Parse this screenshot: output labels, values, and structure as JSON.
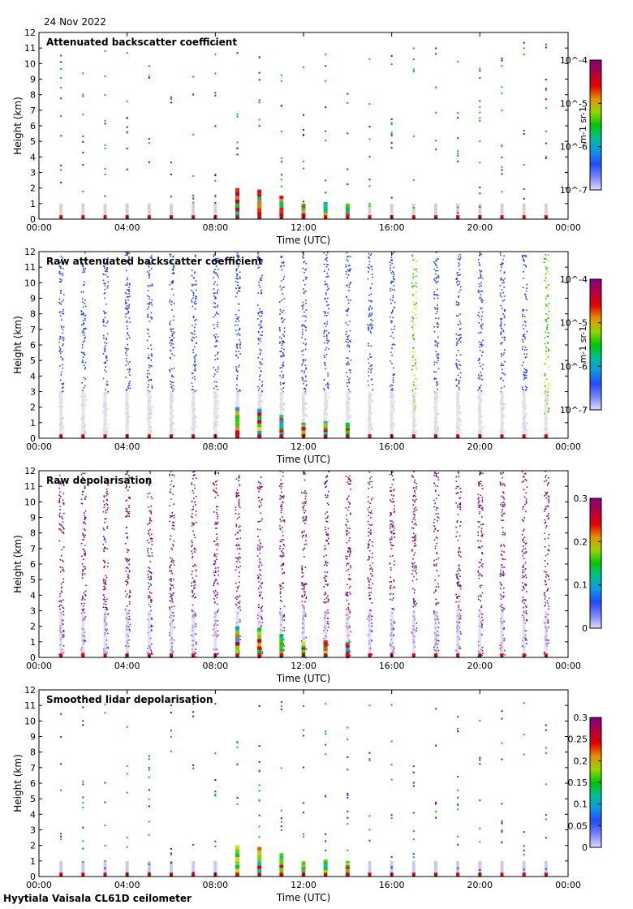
{
  "date": "24 Nov 2022",
  "footer": "Hyytiala Vaisala CL61D ceilometer",
  "colors": {
    "accent_purple": "#7f007f",
    "grid_gray": "#d3d3d3",
    "blue": "#1e3cff",
    "green": "#00c800",
    "yellow": "#e6dc00",
    "red": "#e00000",
    "cyan": "#00b4c8"
  },
  "chart_data": [
    {
      "type": "heatmap",
      "title": "Attenuated backscatter coefficient",
      "xlabel": "Time (UTC)",
      "ylabel": "Height (km)",
      "xticks": [
        "00:00",
        "04:00",
        "08:00",
        "12:00",
        "16:00",
        "20:00",
        "00:00"
      ],
      "xlim": [
        0,
        24
      ],
      "ylim": [
        0,
        12
      ],
      "yticks": [
        0,
        1,
        2,
        3,
        4,
        5,
        6,
        7,
        8,
        9,
        10,
        11,
        12
      ],
      "colorbar": {
        "scale": "log",
        "ticks": [
          "10^-4",
          "10^-5",
          "10^-6",
          "10^-7"
        ],
        "unit": "m-1 sr-1"
      },
      "profile_hours": [
        1,
        2,
        3,
        4,
        5,
        6,
        7,
        8,
        9,
        10,
        11,
        12,
        13,
        14,
        15,
        16,
        17,
        18,
        19,
        20,
        21,
        22,
        23
      ],
      "low_cloud_hours": [
        9,
        10,
        11,
        12,
        13,
        14
      ],
      "low_cloud_top_km": [
        2.0,
        1.9,
        1.5,
        1.0,
        1.1,
        1.0
      ],
      "field": "sparse"
    },
    {
      "type": "heatmap",
      "title": "Raw attenuated backscatter coefficient",
      "xlabel": "Time (UTC)",
      "ylabel": "Height (km)",
      "xticks": [
        "00:00",
        "04:00",
        "08:00",
        "12:00",
        "16:00",
        "20:00",
        "00:00"
      ],
      "xlim": [
        0,
        24
      ],
      "ylim": [
        0,
        12
      ],
      "yticks": [
        0,
        1,
        2,
        3,
        4,
        5,
        6,
        7,
        8,
        9,
        10,
        11,
        12
      ],
      "colorbar": {
        "scale": "log",
        "ticks": [
          "10^-4",
          "10^-5",
          "10^-6",
          "10^-7"
        ],
        "unit": "m-1 sr-1"
      },
      "profile_hours": [
        1,
        2,
        3,
        4,
        5,
        6,
        7,
        8,
        9,
        10,
        11,
        12,
        13,
        14,
        15,
        16,
        17,
        18,
        19,
        20,
        21,
        22,
        23
      ],
      "low_cloud_hours": [
        9,
        10,
        11,
        12,
        13,
        14
      ],
      "low_cloud_top_km": [
        2.0,
        1.9,
        1.5,
        1.0,
        1.1,
        1.0
      ],
      "field": "dense_raw"
    },
    {
      "type": "heatmap",
      "title": "Raw depolarisation",
      "xlabel": "Time (UTC)",
      "ylabel": "Height (km)",
      "xticks": [
        "00:00",
        "04:00",
        "08:00",
        "12:00",
        "16:00",
        "20:00",
        "00:00"
      ],
      "xlim": [
        0,
        24
      ],
      "ylim": [
        0,
        12
      ],
      "yticks": [
        0,
        1,
        2,
        3,
        4,
        5,
        6,
        7,
        8,
        9,
        10,
        11,
        12
      ],
      "colorbar": {
        "scale": "linear",
        "ticks": [
          "0.3",
          "0.2",
          "0.1",
          "0"
        ]
      },
      "profile_hours": [
        1,
        2,
        3,
        4,
        5,
        6,
        7,
        8,
        9,
        10,
        11,
        12,
        13,
        14,
        15,
        16,
        17,
        18,
        19,
        20,
        21,
        22,
        23
      ],
      "low_cloud_hours": [
        9,
        10,
        11,
        12,
        13,
        14
      ],
      "low_cloud_top_km": [
        2.0,
        1.9,
        1.5,
        1.0,
        1.1,
        1.0
      ],
      "field": "dense_depol"
    },
    {
      "type": "heatmap",
      "title": "Smoothed lidar depolarisation",
      "xlabel": "Time (UTC)",
      "ylabel": "Height (km)",
      "xticks": [
        "00:00",
        "04:00",
        "08:00",
        "12:00",
        "16:00",
        "20:00",
        "00:00"
      ],
      "xlim": [
        0,
        24
      ],
      "ylim": [
        0,
        12
      ],
      "yticks": [
        0,
        1,
        2,
        3,
        4,
        5,
        6,
        7,
        8,
        9,
        10,
        11,
        12
      ],
      "colorbar": {
        "scale": "linear",
        "ticks": [
          "0.3",
          "0.25",
          "0.2",
          "0.15",
          "0.1",
          "0.05",
          "0"
        ]
      },
      "profile_hours": [
        1,
        2,
        3,
        4,
        5,
        6,
        7,
        8,
        9,
        10,
        11,
        12,
        13,
        14,
        15,
        16,
        17,
        18,
        19,
        20,
        21,
        22,
        23
      ],
      "low_cloud_hours": [
        9,
        10,
        11,
        12,
        13,
        14
      ],
      "low_cloud_top_km": [
        2.0,
        1.9,
        1.5,
        1.0,
        1.1,
        1.0
      ],
      "field": "sparse_depol"
    }
  ]
}
